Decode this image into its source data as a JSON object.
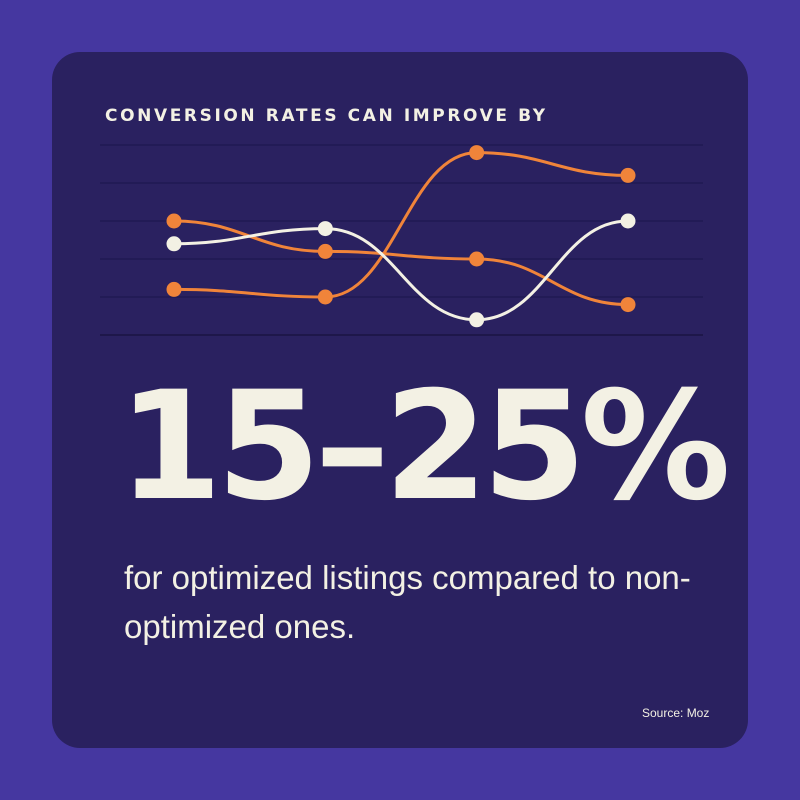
{
  "heading": "CONVERSION RATES CAN IMPROVE BY",
  "stat": "15–25%",
  "description": "for optimized listings compared to non-optimized ones.",
  "source": "Source: Moz",
  "colors": {
    "background": "#4537a0",
    "card": "#2a2160",
    "orange": "#f0843a",
    "white": "#f3f1e4",
    "gridline": "#1f1850"
  },
  "chart_data": {
    "type": "line",
    "x": [
      1,
      2,
      3,
      4
    ],
    "ylim": [
      0,
      5
    ],
    "grid": true,
    "legend": "none",
    "series": [
      {
        "color": "#f0843a",
        "values": [
          3.0,
          2.2,
          2.0,
          0.8
        ]
      },
      {
        "color": "#f0843a",
        "values": [
          1.2,
          1.0,
          4.8,
          4.2
        ]
      },
      {
        "color": "#f3f1e4",
        "values": [
          2.4,
          2.8,
          0.4,
          3.0
        ]
      }
    ]
  }
}
